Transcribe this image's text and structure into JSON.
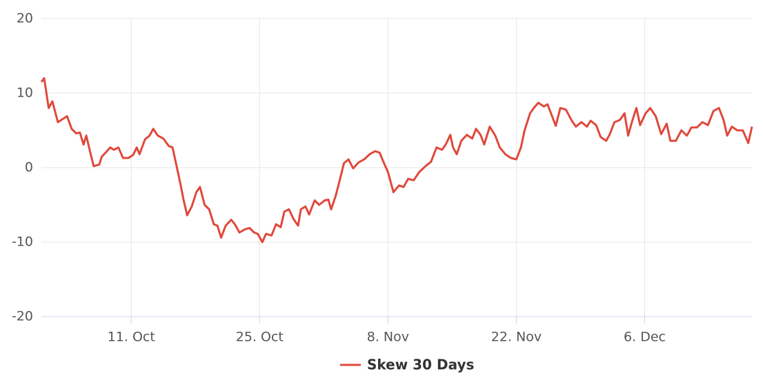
{
  "chart_data": {
    "type": "line",
    "x": [
      -9.8,
      -9.5,
      -9.0,
      -8.6,
      -8.0,
      -7.0,
      -6.5,
      -6.0,
      -5.6,
      -5.2,
      -4.9,
      -4.5,
      -4.1,
      -3.5,
      -3.2,
      -2.8,
      -2.3,
      -1.9,
      -1.4,
      -0.9,
      -0.3,
      0.2,
      0.6,
      0.9,
      1.5,
      2.0,
      2.4,
      2.9,
      3.5,
      4.1,
      4.5,
      5.0,
      5.4,
      5.7,
      6.1,
      6.6,
      7.1,
      7.5,
      8.0,
      8.5,
      9.0,
      9.4,
      9.8,
      10.3,
      10.9,
      11.3,
      11.8,
      12.4,
      12.9,
      13.4,
      13.8,
      14.3,
      14.7,
      15.3,
      15.8,
      16.3,
      16.7,
      17.2,
      17.7,
      18.2,
      18.5,
      19.0,
      19.4,
      20.0,
      20.5,
      21.1,
      21.5,
      21.8,
      22.3,
      22.7,
      23.2,
      23.7,
      24.2,
      24.8,
      25.4,
      26.0,
      26.6,
      27.1,
      27.5,
      28.0,
      28.6,
      29.2,
      29.7,
      30.2,
      30.8,
      31.4,
      32.1,
      32.7,
      33.3,
      33.9,
      34.3,
      34.8,
      35.1,
      35.5,
      36.0,
      36.6,
      37.2,
      37.6,
      38.1,
      38.5,
      39.1,
      39.7,
      40.2,
      40.8,
      41.4,
      42.0,
      42.5,
      42.9,
      43.5,
      43.9,
      44.4,
      45.0,
      45.4,
      45.9,
      46.3,
      46.8,
      47.4,
      48.0,
      48.5,
      49.1,
      49.7,
      50.1,
      50.7,
      51.2,
      51.8,
      52.2,
      52.7,
      53.3,
      53.8,
      54.2,
      54.6,
      55.1,
      55.5,
      56.1,
      56.6,
      57.2,
      57.8,
      58.4,
      58.8,
      59.4,
      60.0,
      60.6,
      61.1,
      61.7,
      62.3,
      62.9,
      63.5,
      64.1,
      64.6,
      65.0,
      65.5,
      66.1,
      66.7,
      67.3,
      67.7
    ],
    "series": [
      {
        "name": "Skew 30 Days",
        "color": "#e0483b",
        "values": [
          11.5,
          12,
          8,
          8.9,
          6.1,
          6.9,
          5.2,
          4.6,
          4.7,
          3.1,
          4.3,
          2.2,
          0.2,
          0.4,
          1.5,
          2,
          2.7,
          2.4,
          2.7,
          1.3,
          1.3,
          1.7,
          2.7,
          1.8,
          3.8,
          4.3,
          5.2,
          4.3,
          3.9,
          2.9,
          2.7,
          -0.1,
          -2.4,
          -4.3,
          -6.4,
          -5.2,
          -3.3,
          -2.6,
          -5,
          -5.6,
          -7.6,
          -7.8,
          -9.4,
          -7.8,
          -7,
          -7.6,
          -8.7,
          -8.3,
          -8.1,
          -8.7,
          -8.9,
          -10,
          -8.9,
          -9.1,
          -7.6,
          -8,
          -5.9,
          -5.6,
          -6.9,
          -7.8,
          -5.6,
          -5.2,
          -6.3,
          -4.4,
          -5,
          -4.4,
          -4.3,
          -5.6,
          -3.8,
          -1.9,
          0.6,
          1.1,
          -0.1,
          0.7,
          1.1,
          1.8,
          2.2,
          2,
          0.8,
          -0.6,
          -3.3,
          -2.4,
          -2.6,
          -1.5,
          -1.7,
          -0.6,
          0.2,
          0.8,
          2.7,
          2.4,
          3.1,
          4.4,
          2.7,
          1.8,
          3.6,
          4.4,
          3.9,
          5.2,
          4.4,
          3.1,
          5.5,
          4.3,
          2.7,
          1.8,
          1.3,
          1.1,
          2.7,
          5,
          7.3,
          8,
          8.7,
          8.2,
          8.5,
          6.9,
          5.6,
          8,
          7.8,
          6.4,
          5.5,
          6.1,
          5.5,
          6.3,
          5.7,
          4.1,
          3.6,
          4.5,
          6.1,
          6.4,
          7.3,
          4.3,
          6.1,
          8,
          5.7,
          7.3,
          8,
          6.9,
          4.5,
          5.9,
          3.6,
          3.6,
          5,
          4.3,
          5.4,
          5.4,
          6.1,
          5.7,
          7.6,
          8,
          6.4,
          4.3,
          5.5,
          5,
          5,
          3.3,
          5.5
        ]
      }
    ],
    "xlim": [
      -9.8,
      67.7
    ],
    "xticks": [
      {
        "value": 0,
        "label": "11. Oct"
      },
      {
        "value": 14,
        "label": "25. Oct"
      },
      {
        "value": 28,
        "label": "8. Nov"
      },
      {
        "value": 42,
        "label": "22. Nov"
      },
      {
        "value": 56,
        "label": "6. Dec"
      }
    ],
    "ylim": [
      -20,
      20
    ],
    "yticks": [
      -20,
      -10,
      0,
      10,
      20
    ],
    "grid": true
  }
}
